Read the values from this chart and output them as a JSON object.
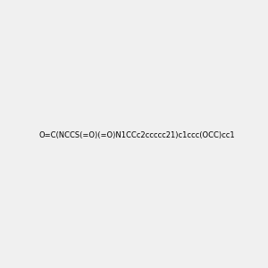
{
  "smiles": "O=C(NCCS(=O)(=O)N1CCc2ccccc21)c1ccc(OCC)cc1",
  "image_size": 300,
  "background_color": "#f0f0f0"
}
